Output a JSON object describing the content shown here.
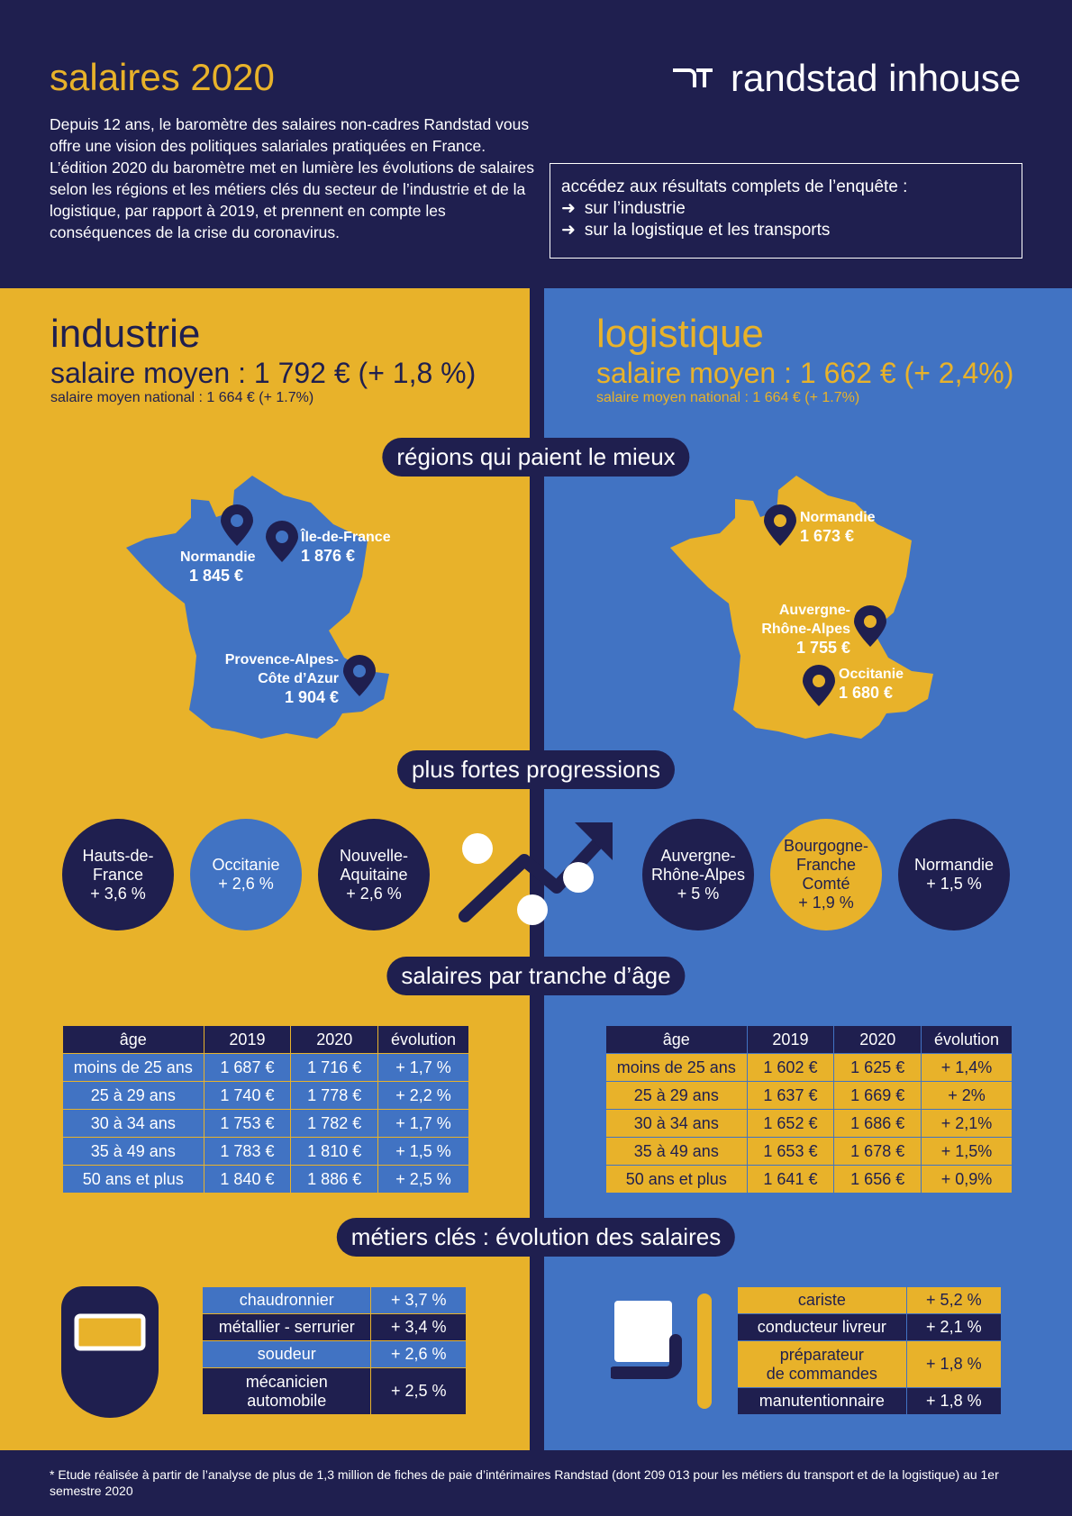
{
  "header": {
    "title": "salaires 2020",
    "intro": "Depuis 12 ans, le baromètre des salaires non-cadres Randstad vous offre une vision des politiques salariales pratiquées en France. L’édition 2020 du baromètre met en lumière les évolutions de salaires selon les régions et les métiers clés du secteur de l’industrie et de la logistique, par rapport à 2019, et prennent en compte les conséquences de la crise du coronavirus.",
    "logo_text": "randstad inhouse",
    "access_title": "accédez aux résultats complets de l’enquête :",
    "access_links": [
      "sur l’industrie",
      "sur la logistique et les transports"
    ]
  },
  "industrie": {
    "title": "industrie",
    "average": "salaire moyen : 1 792 € (+ 1,8 %)",
    "national": "salaire moyen national : 1 664 € (+ 1.7%)",
    "regions": [
      {
        "name": "Normandie",
        "value": "1 845 €"
      },
      {
        "name": "Île-de-France",
        "value": "1 876 €"
      },
      {
        "name": "Provence-Alpes-\nCôte d’Azur",
        "value": "1 904 €"
      }
    ],
    "progressions": [
      {
        "name": "Hauts-de-\nFrance",
        "value": "+ 3,6 %"
      },
      {
        "name": "Occitanie",
        "value": "+ 2,6 %"
      },
      {
        "name": "Nouvelle-\nAquitaine",
        "value": "+ 2,6 %"
      }
    ],
    "age_table": {
      "headers": [
        "âge",
        "2019",
        "2020",
        "évolution"
      ],
      "rows": [
        [
          "moins de 25 ans",
          "1 687 €",
          "1 716 €",
          "+ 1,7 %"
        ],
        [
          "25 à 29 ans",
          "1 740 €",
          "1 778 €",
          "+ 2,2 %"
        ],
        [
          "30 à 34 ans",
          "1 753 €",
          "1 782 €",
          "+ 1,7 %"
        ],
        [
          "35 à 49 ans",
          "1 783 €",
          "1 810 €",
          "+ 1,5 %"
        ],
        [
          "50 ans et plus",
          "1 840 €",
          "1 886 €",
          "+ 2,5 %"
        ]
      ]
    },
    "jobs": [
      [
        "chaudronnier",
        "+ 3,7 %"
      ],
      [
        "métallier - serrurier",
        "+ 3,4 %"
      ],
      [
        "soudeur",
        "+ 2,6 %"
      ],
      [
        "mécanicien\nautomobile",
        "+ 2,5 %"
      ]
    ]
  },
  "logistique": {
    "title": "logistique",
    "average": "salaire moyen : 1 662 € (+ 2,4%)",
    "national": "salaire moyen national : 1 664 € (+ 1.7%)",
    "regions": [
      {
        "name": "Normandie",
        "value": "1 673 €"
      },
      {
        "name": "Auvergne-\nRhône-Alpes",
        "value": "1 755 €"
      },
      {
        "name": "Occitanie",
        "value": "1 680 €"
      }
    ],
    "progressions": [
      {
        "name": "Auvergne-\nRhône-Alpes",
        "value": "+ 5 %"
      },
      {
        "name": "Bourgogne-\nFranche\nComté",
        "value": "+ 1,9 %"
      },
      {
        "name": "Normandie",
        "value": "+ 1,5 %"
      }
    ],
    "age_table": {
      "headers": [
        "âge",
        "2019",
        "2020",
        "évolution"
      ],
      "rows": [
        [
          "moins de 25 ans",
          "1 602 €",
          "1 625 €",
          "+ 1,4%"
        ],
        [
          "25 à 29 ans",
          "1 637 €",
          "1 669 €",
          "+ 2%"
        ],
        [
          "30 à 34 ans",
          "1 652 €",
          "1 686 €",
          "+ 2,1%"
        ],
        [
          "35 à 49 ans",
          "1 653 €",
          "1 678 €",
          "+ 1,5%"
        ],
        [
          "50 ans et plus",
          "1 641 €",
          "1 656 €",
          "+ 0,9%"
        ]
      ]
    },
    "jobs": [
      [
        "cariste",
        "+ 5,2 %"
      ],
      [
        "conducteur livreur",
        "+ 2,1 %"
      ],
      [
        "préparateur\nde commandes",
        "+ 1,8 %"
      ],
      [
        "manutentionnaire",
        "+ 1,8 %"
      ]
    ]
  },
  "sections": {
    "regions": "régions qui paient le mieux",
    "progressions": "plus fortes progressions",
    "age": "salaires par tranche d’âge",
    "jobs": "métiers clés : évolution des salaires"
  },
  "footnote": "* Etude réalisée à partir de l’analyse de plus de 1,3 million de fiches de paie d’intérimaires Randstad (dont 209 013 pour les métiers du transport et de la logistique) au 1er semestre 2020",
  "colors": {
    "navy": "#1f1f4f",
    "gold": "#e8b22a",
    "blue": "#4173c3"
  }
}
